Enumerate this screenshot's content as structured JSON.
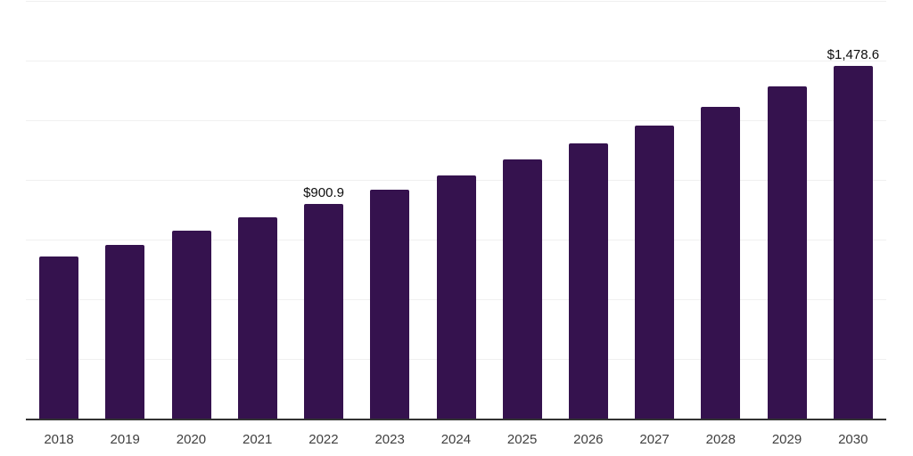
{
  "chart_data": {
    "type": "bar",
    "title": "",
    "xlabel": "",
    "ylabel": "",
    "categories": [
      "2018",
      "2019",
      "2020",
      "2021",
      "2022",
      "2023",
      "2024",
      "2025",
      "2026",
      "2027",
      "2028",
      "2029",
      "2030"
    ],
    "values": [
      681,
      726,
      788,
      845,
      900.9,
      958.5,
      1020,
      1085,
      1154,
      1228,
      1306.5,
      1390,
      1478.6
    ],
    "data_labels": [
      {
        "category": "2022",
        "text": "$900.9"
      },
      {
        "category": "2030",
        "text": "$1,478.6"
      }
    ],
    "ylim": [
      0,
      1750
    ],
    "gridline_interval": 250,
    "grid": "horizontal-only",
    "legend": "none",
    "y_axis_tick_labels_visible": false,
    "colors": {
      "bar": "#35124e",
      "gridline": "#f0f0f0",
      "axis_line": "#333333",
      "x_tick_label": "#404040",
      "value_label": "#0d0d0d",
      "background": "#ffffff"
    }
  }
}
